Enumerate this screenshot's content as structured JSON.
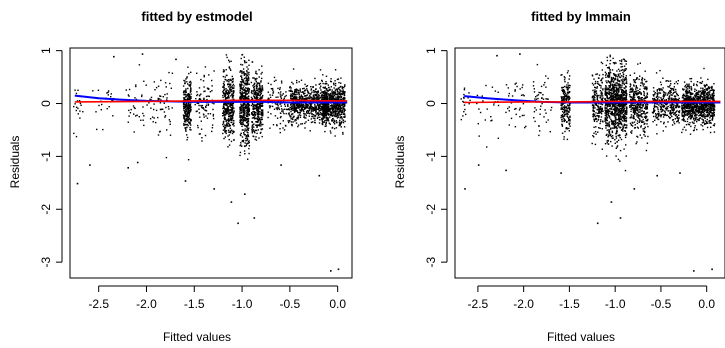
{
  "colors": {
    "points": "#000000",
    "smooth_line": "#0000ff",
    "reference_line": "#ff0000",
    "axes": "#000000"
  },
  "chart_data": [
    {
      "type": "scatter",
      "title": "fitted by estmodel",
      "xlabel": "Fitted values",
      "ylabel": "Residuals",
      "xlim": [
        -2.8,
        0.15
      ],
      "ylim": [
        -3.3,
        1.05
      ],
      "xticks": [
        -2.5,
        -2.0,
        -1.5,
        -1.0,
        -0.5,
        0.0
      ],
      "xtick_labels": [
        "-2.5",
        "-2.0",
        "-1.5",
        "-1.0",
        "-0.5",
        "0.0"
      ],
      "yticks": [
        -3,
        -2,
        -1,
        0,
        1
      ],
      "ytick_labels": [
        "-3",
        "-2",
        "-1",
        "0",
        "1"
      ],
      "grid": false,
      "legend": "none",
      "series": [
        {
          "kind": "points",
          "clusters": [
            {
              "x": -2.72,
              "x_spread": 0.05,
              "y_sd": 0.2,
              "n": 18
            },
            {
              "x": -2.45,
              "x_spread": 0.12,
              "y_sd": 0.28,
              "n": 22
            },
            {
              "x": -2.1,
              "x_spread": 0.12,
              "y_sd": 0.25,
              "n": 35
            },
            {
              "x": -1.85,
              "x_spread": 0.12,
              "y_sd": 0.25,
              "n": 60
            },
            {
              "x": -1.58,
              "x_spread": 0.04,
              "y_sd": 0.25,
              "n": 260
            },
            {
              "x": -1.4,
              "x_spread": 0.1,
              "y_sd": 0.3,
              "n": 90
            },
            {
              "x": -1.15,
              "x_spread": 0.06,
              "y_sd": 0.32,
              "n": 380
            },
            {
              "x": -0.98,
              "x_spread": 0.05,
              "y_sd": 0.38,
              "n": 450
            },
            {
              "x": -0.85,
              "x_spread": 0.06,
              "y_sd": 0.3,
              "n": 330
            },
            {
              "x": -0.62,
              "x_spread": 0.12,
              "y_sd": 0.22,
              "n": 120
            },
            {
              "x": -0.3,
              "x_spread": 0.2,
              "y_sd": 0.17,
              "n": 700
            },
            {
              "x": -0.05,
              "x_spread": 0.12,
              "y_sd": 0.2,
              "n": 650
            }
          ],
          "outliers": [
            {
              "x": -2.73,
              "y": -1.5
            },
            {
              "x": -2.6,
              "y": -1.15
            },
            {
              "x": -2.2,
              "y": -1.2
            },
            {
              "x": -2.1,
              "y": -1.1
            },
            {
              "x": -1.6,
              "y": -1.45
            },
            {
              "x": -1.3,
              "y": -1.6
            },
            {
              "x": -1.12,
              "y": -1.85
            },
            {
              "x": -1.05,
              "y": -2.25
            },
            {
              "x": -0.98,
              "y": -1.7
            },
            {
              "x": -0.88,
              "y": -2.15
            },
            {
              "x": -0.6,
              "y": -1.15
            },
            {
              "x": -0.2,
              "y": -1.35
            },
            {
              "x": -0.08,
              "y": -3.15
            },
            {
              "x": 0.0,
              "y": -3.12
            },
            {
              "x": -2.35,
              "y": 0.9
            },
            {
              "x": -2.05,
              "y": 0.95
            },
            {
              "x": -1.7,
              "y": 0.85
            },
            {
              "x": -0.9,
              "y": 0.8
            }
          ]
        },
        {
          "kind": "line",
          "name": "",
          "color": "#0000ff",
          "x": [
            -2.75,
            -2.5,
            -2.25,
            -2.0,
            -1.75,
            -1.5,
            -1.25,
            -1.0,
            -0.75,
            -0.5,
            -0.25,
            0.0,
            0.1
          ],
          "y": [
            0.15,
            0.1,
            0.07,
            0.05,
            0.04,
            0.03,
            0.03,
            0.03,
            0.03,
            0.02,
            0.02,
            0.02,
            0.02
          ]
        },
        {
          "kind": "line",
          "name": "",
          "color": "#ff0000",
          "x": [
            -2.75,
            -2.0,
            -1.5,
            -1.0,
            -0.5,
            0.0,
            0.1
          ],
          "y": [
            0.03,
            0.04,
            0.05,
            0.06,
            0.06,
            0.05,
            0.05
          ]
        }
      ]
    },
    {
      "type": "scatter",
      "title": "fitted by lmmain",
      "xlabel": "Fitted values",
      "ylabel": "Residuals",
      "xlim": [
        -2.75,
        0.2
      ],
      "ylim": [
        -3.3,
        1.05
      ],
      "xticks": [
        -2.5,
        -2.0,
        -1.5,
        -1.0,
        -0.5,
        0.0
      ],
      "xtick_labels": [
        "-2.5",
        "-2.0",
        "-1.5",
        "-1.0",
        "-0.5",
        "0.0"
      ],
      "yticks": [
        -3,
        -2,
        -1,
        0,
        1
      ],
      "ytick_labels": [
        "-3",
        "-2",
        "-1",
        "0",
        "1"
      ],
      "grid": false,
      "legend": "none",
      "series": [
        {
          "kind": "points",
          "clusters": [
            {
              "x": -2.65,
              "x_spread": 0.06,
              "y_sd": 0.2,
              "n": 20
            },
            {
              "x": -2.4,
              "x_spread": 0.12,
              "y_sd": 0.28,
              "n": 25
            },
            {
              "x": -2.1,
              "x_spread": 0.12,
              "y_sd": 0.25,
              "n": 35
            },
            {
              "x": -1.8,
              "x_spread": 0.1,
              "y_sd": 0.25,
              "n": 50
            },
            {
              "x": -1.55,
              "x_spread": 0.05,
              "y_sd": 0.25,
              "n": 200
            },
            {
              "x": -1.2,
              "x_spread": 0.06,
              "y_sd": 0.28,
              "n": 200
            },
            {
              "x": -1.0,
              "x_spread": 0.12,
              "y_sd": 0.35,
              "n": 900
            },
            {
              "x": -0.75,
              "x_spread": 0.1,
              "y_sd": 0.28,
              "n": 350
            },
            {
              "x": -0.45,
              "x_spread": 0.15,
              "y_sd": 0.2,
              "n": 350
            },
            {
              "x": -0.1,
              "x_spread": 0.18,
              "y_sd": 0.18,
              "n": 900
            }
          ],
          "outliers": [
            {
              "x": -2.65,
              "y": -1.6
            },
            {
              "x": -2.5,
              "y": -1.15
            },
            {
              "x": -2.2,
              "y": -1.25
            },
            {
              "x": -1.6,
              "y": -1.3
            },
            {
              "x": -1.2,
              "y": -2.25
            },
            {
              "x": -1.05,
              "y": -1.85
            },
            {
              "x": -0.95,
              "y": -2.15
            },
            {
              "x": -0.8,
              "y": -1.6
            },
            {
              "x": -0.55,
              "y": -1.35
            },
            {
              "x": -0.3,
              "y": -1.3
            },
            {
              "x": -0.15,
              "y": -3.15
            },
            {
              "x": 0.05,
              "y": -3.12
            },
            {
              "x": -2.3,
              "y": 0.92
            },
            {
              "x": -2.05,
              "y": 0.95
            },
            {
              "x": -0.9,
              "y": 0.82
            }
          ]
        },
        {
          "kind": "line",
          "name": "",
          "color": "#0000ff",
          "x": [
            -2.65,
            -2.4,
            -2.1,
            -1.8,
            -1.5,
            -1.2,
            -0.9,
            -0.6,
            -0.3,
            0.0,
            0.15
          ],
          "y": [
            0.14,
            0.1,
            0.06,
            0.03,
            0.02,
            0.02,
            0.02,
            0.02,
            0.02,
            0.02,
            0.02
          ]
        },
        {
          "kind": "line",
          "name": "",
          "color": "#ff0000",
          "x": [
            -2.65,
            -2.0,
            -1.5,
            -1.0,
            -0.5,
            0.0,
            0.15
          ],
          "y": [
            0.02,
            0.03,
            0.03,
            0.04,
            0.04,
            0.04,
            0.04
          ]
        }
      ]
    }
  ]
}
